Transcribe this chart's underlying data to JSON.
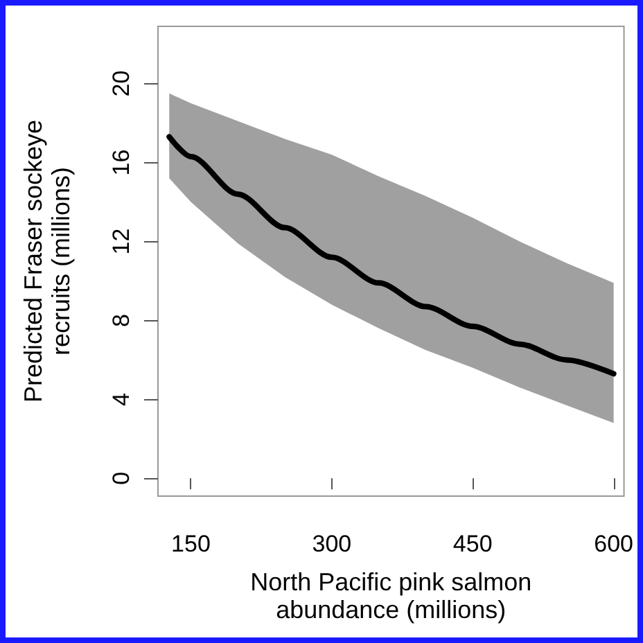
{
  "chart_data": {
    "type": "line",
    "xlabel": "North Pacific pink salmon\nabundance (millions)",
    "ylabel": "Predicted Fraser sockeye\nrecruits (millions)",
    "x": [
      127,
      150,
      200,
      250,
      300,
      350,
      400,
      450,
      500,
      550,
      600
    ],
    "series": [
      {
        "color": "#000000",
        "values": [
          17.3,
          16.3,
          14.4,
          12.7,
          11.2,
          9.9,
          8.7,
          7.7,
          6.8,
          6.0,
          5.3
        ],
        "lower": [
          15.2,
          14.0,
          11.9,
          10.2,
          8.8,
          7.6,
          6.5,
          5.6,
          4.6,
          3.7,
          2.8
        ],
        "upper": [
          19.5,
          19.0,
          18.1,
          17.2,
          16.4,
          15.3,
          14.3,
          13.2,
          12.0,
          10.9,
          9.9
        ]
      }
    ],
    "xlim": [
      115,
      611
    ],
    "xticks": [
      150,
      300,
      450,
      600
    ],
    "ylim": [
      -0.9,
      22.9
    ],
    "yticks": [
      0,
      4,
      8,
      12,
      16,
      20
    ],
    "grid": false,
    "marker": "none",
    "line_style": "solid"
  }
}
